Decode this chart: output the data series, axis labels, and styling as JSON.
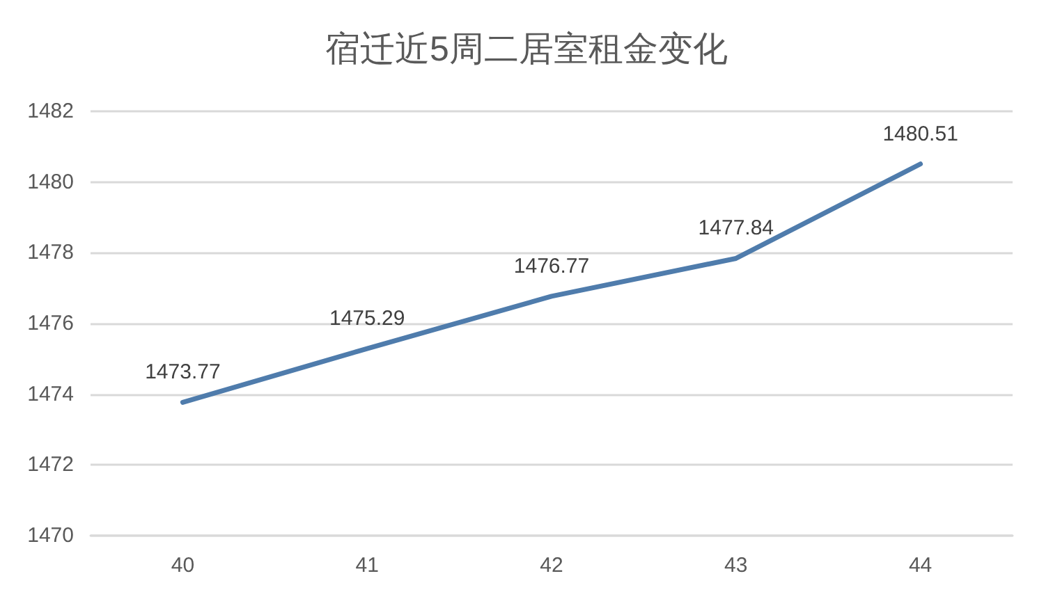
{
  "chart_data": {
    "type": "line",
    "title": "宿迁近5周二居室租金变化",
    "categories": [
      "40",
      "41",
      "42",
      "43",
      "44"
    ],
    "series": [
      {
        "color": "#4f7cac",
        "values": [
          1473.77,
          1475.29,
          1476.77,
          1477.84,
          1480.51
        ]
      }
    ],
    "ylim": [
      1470,
      1482
    ],
    "yticks": [
      1470,
      1472,
      1474,
      1476,
      1478,
      1480,
      1482
    ],
    "grid": "y",
    "marker": "none",
    "line_style": "solid",
    "data_labels": true
  }
}
